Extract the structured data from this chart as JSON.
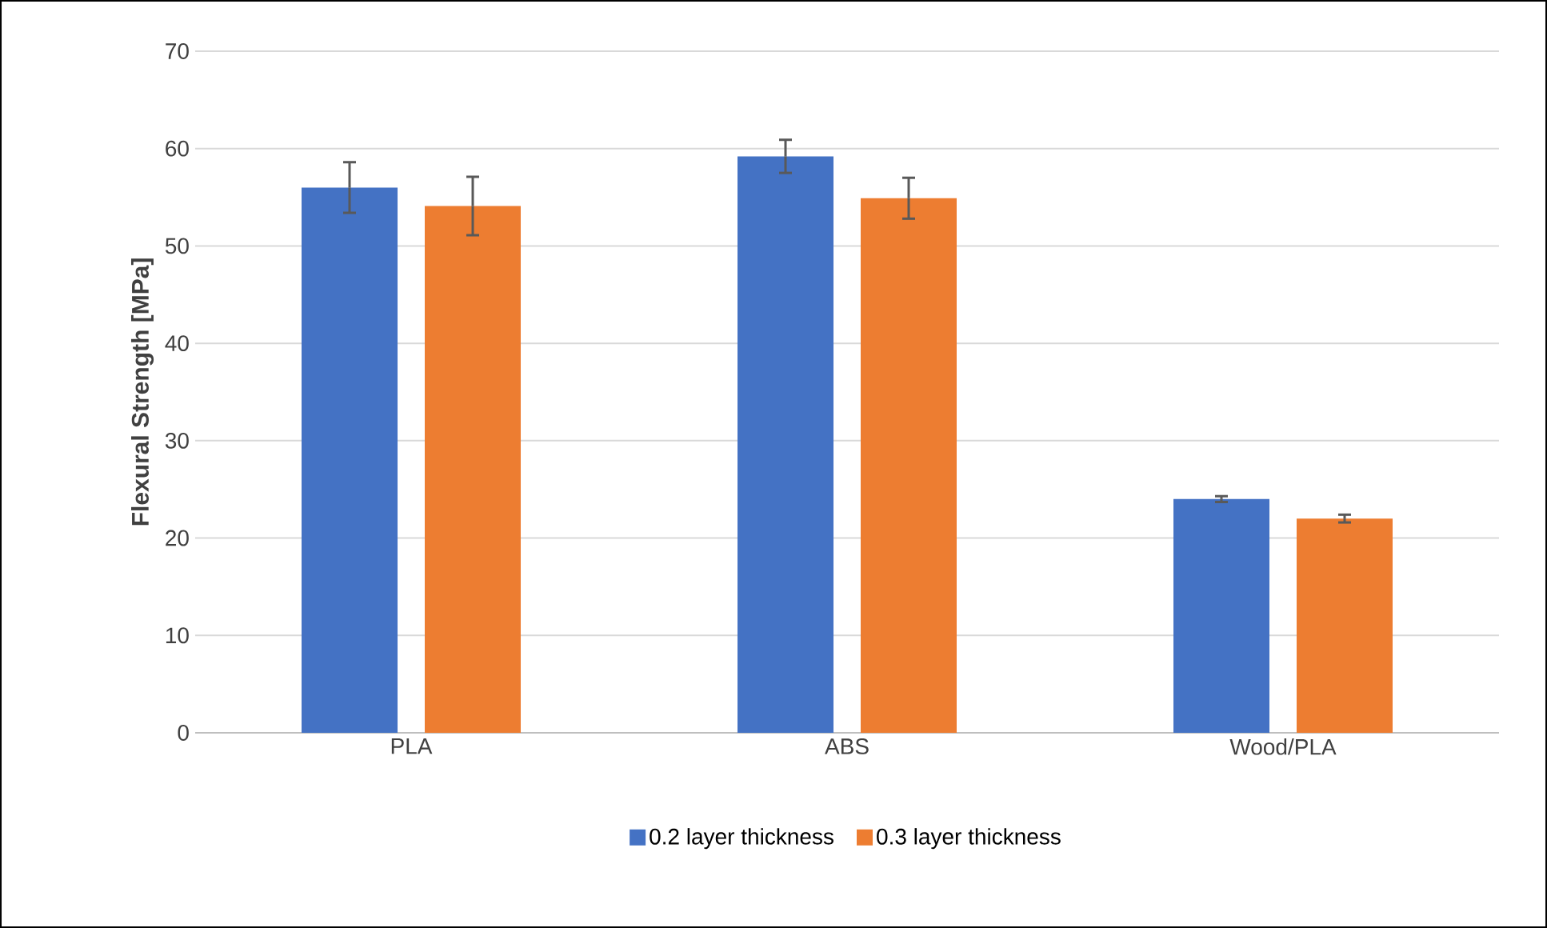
{
  "chart_data": {
    "type": "bar",
    "ylabel": "Flexural Strength [MPa]",
    "categories": [
      "PLA",
      "ABS",
      "Wood/PLA"
    ],
    "series": [
      {
        "name": "0.2 layer thickness",
        "color": "#4472c4",
        "values": [
          56.0,
          59.2,
          24.0
        ],
        "errors": [
          2.6,
          1.7,
          0.3
        ]
      },
      {
        "name": "0.3 layer thickness",
        "color": "#ed7d31",
        "values": [
          54.1,
          54.9,
          22.0
        ],
        "errors": [
          3.0,
          2.1,
          0.4
        ]
      }
    ],
    "ylim": [
      0,
      70
    ],
    "yticks": [
      0,
      10,
      20,
      30,
      40,
      50,
      60,
      70
    ],
    "grid": "y",
    "legend": "bottom"
  }
}
